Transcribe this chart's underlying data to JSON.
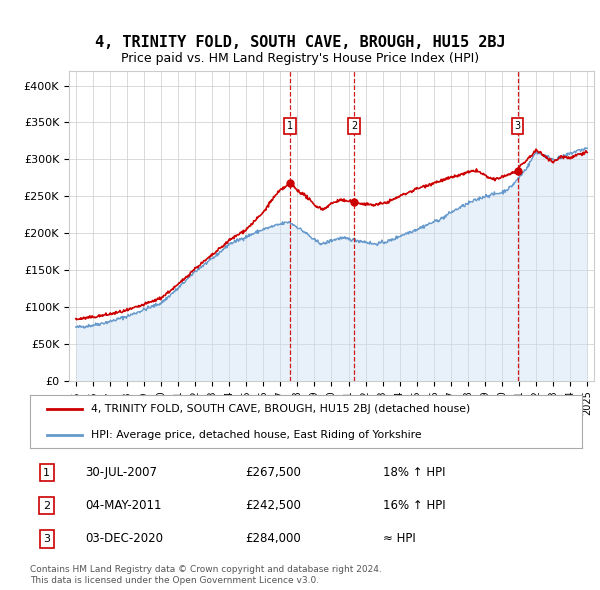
{
  "title": "4, TRINITY FOLD, SOUTH CAVE, BROUGH, HU15 2BJ",
  "subtitle": "Price paid vs. HM Land Registry's House Price Index (HPI)",
  "ylim": [
    0,
    420000
  ],
  "yticks": [
    0,
    50000,
    100000,
    150000,
    200000,
    250000,
    300000,
    350000,
    400000
  ],
  "ytick_labels": [
    "£0",
    "£50K",
    "£100K",
    "£150K",
    "£200K",
    "£250K",
    "£300K",
    "£350K",
    "£400K"
  ],
  "transactions": [
    {
      "date": 2007.58,
      "price": 267500,
      "label": "1"
    },
    {
      "date": 2011.34,
      "price": 242500,
      "label": "2"
    },
    {
      "date": 2020.92,
      "price": 284000,
      "label": "3"
    }
  ],
  "transaction_details": [
    {
      "num": "1",
      "date": "30-JUL-2007",
      "price": "£267,500",
      "note": "18% ↑ HPI"
    },
    {
      "num": "2",
      "date": "04-MAY-2011",
      "price": "£242,500",
      "note": "16% ↑ HPI"
    },
    {
      "num": "3",
      "date": "03-DEC-2020",
      "price": "£284,000",
      "note": "≈ HPI"
    }
  ],
  "legend_entries": [
    "4, TRINITY FOLD, SOUTH CAVE, BROUGH, HU15 2BJ (detached house)",
    "HPI: Average price, detached house, East Riding of Yorkshire"
  ],
  "footer": "Contains HM Land Registry data © Crown copyright and database right 2024.\nThis data is licensed under the Open Government Licence v3.0.",
  "hpi_t": [
    1995.0,
    1996.0,
    1997.0,
    1998.0,
    1999.0,
    2000.0,
    2001.0,
    2002.0,
    2003.0,
    2004.0,
    2005.0,
    2006.0,
    2007.0,
    2007.5,
    2008.0,
    2008.5,
    2009.0,
    2009.5,
    2010.0,
    2010.5,
    2011.0,
    2011.5,
    2012.0,
    2012.5,
    2013.0,
    2013.5,
    2014.0,
    2015.0,
    2016.0,
    2016.5,
    2017.0,
    2018.0,
    2019.0,
    2020.0,
    2020.5,
    2021.0,
    2021.5,
    2022.0,
    2022.5,
    2023.0,
    2023.5,
    2024.0,
    2024.5,
    2025.0
  ],
  "hpi_v": [
    72000,
    75000,
    80000,
    87000,
    96000,
    105000,
    125000,
    148000,
    165000,
    185000,
    195000,
    205000,
    212000,
    215000,
    208000,
    200000,
    190000,
    185000,
    190000,
    193000,
    192000,
    190000,
    188000,
    185000,
    187000,
    190000,
    196000,
    205000,
    215000,
    220000,
    228000,
    240000,
    250000,
    255000,
    262000,
    275000,
    290000,
    310000,
    305000,
    300000,
    302000,
    308000,
    312000,
    315000
  ],
  "prop_t": [
    1995.0,
    1996.0,
    1997.0,
    1998.0,
    1999.0,
    2000.0,
    2001.0,
    2002.0,
    2003.0,
    2004.0,
    2005.0,
    2006.0,
    2006.5,
    2007.0,
    2007.58,
    2008.0,
    2008.5,
    2009.0,
    2009.5,
    2010.0,
    2010.5,
    2011.0,
    2011.34,
    2011.8,
    2012.5,
    2013.0,
    2013.5,
    2014.0,
    2015.0,
    2016.0,
    2017.0,
    2018.0,
    2018.5,
    2019.0,
    2019.5,
    2020.0,
    2020.92,
    2021.0,
    2021.5,
    2022.0,
    2022.5,
    2023.0,
    2023.5,
    2024.0,
    2024.5,
    2025.0
  ],
  "prop_v": [
    83000,
    86000,
    90000,
    95000,
    103000,
    112000,
    130000,
    152000,
    170000,
    190000,
    205000,
    228000,
    245000,
    258000,
    267500,
    258000,
    250000,
    238000,
    232000,
    240000,
    245000,
    243000,
    242500,
    240000,
    238000,
    240000,
    244000,
    250000,
    260000,
    268000,
    275000,
    282000,
    285000,
    278000,
    272000,
    276000,
    284000,
    288000,
    300000,
    312000,
    305000,
    296000,
    304000,
    302000,
    307000,
    310000
  ],
  "line_color_property": "#cc0000",
  "line_color_hpi": "#6699cc",
  "fill_color_hpi": "#cce0f5",
  "vline_color": "#cc0000",
  "box_color": "#cc0000",
  "background_color": "#ffffff",
  "grid_color": "#cccccc"
}
